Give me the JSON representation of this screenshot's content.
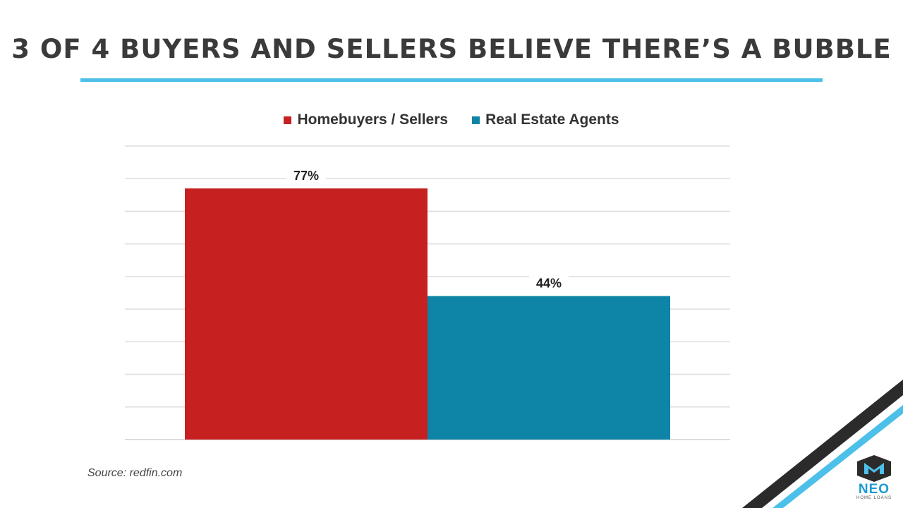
{
  "title": "3 OF 4 BUYERS AND SELLERS BELIEVE THERE’S A BUBBLE",
  "source": "Source: redfin.com",
  "logo": {
    "name": "NEO",
    "tagline": "HOME LOANS"
  },
  "colors": {
    "accent": "#4cc0e8",
    "dark_stripe": "#2b2b2b"
  },
  "chart_data": {
    "type": "bar",
    "title": "",
    "xlabel": "",
    "ylabel": "",
    "grid": true,
    "legend_position": "top",
    "ylim": [
      0,
      90
    ],
    "categories": [
      ""
    ],
    "series": [
      {
        "name": "Homebuyers / Sellers",
        "values": [
          77
        ],
        "value_labels": [
          "77%"
        ],
        "color": "#c62020"
      },
      {
        "name": "Real Estate Agents",
        "values": [
          44
        ],
        "value_labels": [
          "44%"
        ],
        "color": "#0e84a6"
      }
    ]
  }
}
